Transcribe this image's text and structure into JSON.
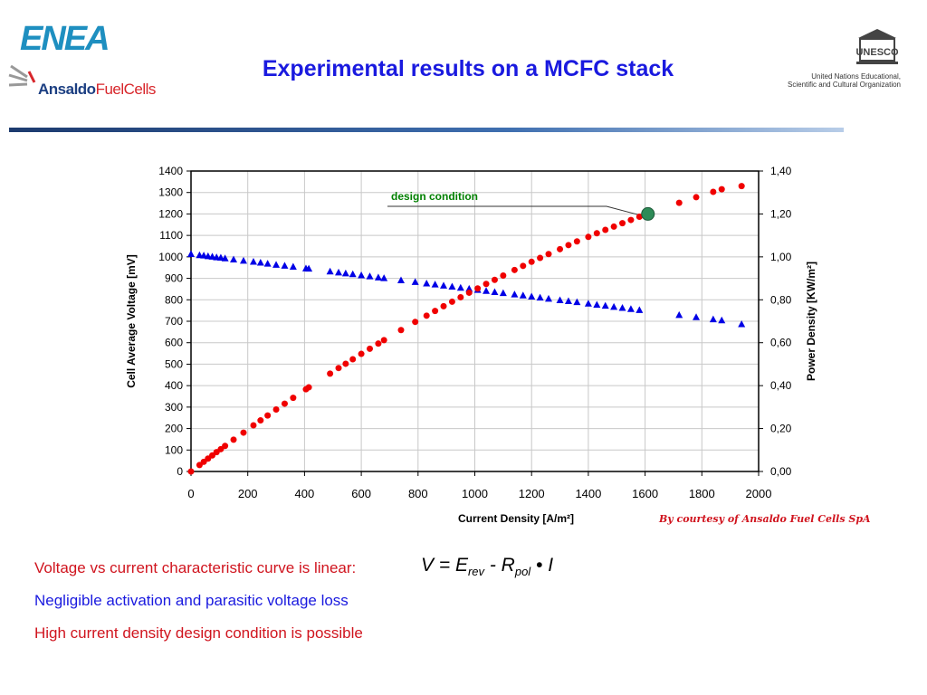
{
  "header": {
    "title": "Experimental results on a MCFC stack",
    "logo_left_top": "ENEA",
    "logo_left_bottom_a": "Ansaldo",
    "logo_left_bottom_b": "FuelCells",
    "logo_right_emblem": "UNESCO",
    "logo_right_line1": "United Nations Educational,",
    "logo_right_line2": "Scientific and Cultural Organization"
  },
  "chart_data": {
    "type": "scatter",
    "xlabel": "Current Density  [A/m²]",
    "ylabel": "Cell Average Voltage   [mV]",
    "y2label": "Power Density    [KW/m²]",
    "xlim": [
      0,
      2000
    ],
    "ylim": [
      0,
      1400
    ],
    "y2lim": [
      0,
      1.4
    ],
    "grid": true,
    "x_ticks": [
      "0",
      "200",
      "400",
      "600",
      "800",
      "1000",
      "1200",
      "1400",
      "1600",
      "1800",
      "2000"
    ],
    "y_ticks": [
      "0",
      "100",
      "200",
      "300",
      "400",
      "500",
      "600",
      "700",
      "800",
      "900",
      "1000",
      "1100",
      "1200",
      "1300",
      "1400"
    ],
    "y2_ticks": [
      "0,00",
      "0,20",
      "0,40",
      "0,60",
      "0,80",
      "1,00",
      "1,20",
      "1,40"
    ],
    "x": [
      0,
      30,
      45,
      60,
      75,
      90,
      105,
      120,
      150,
      185,
      220,
      245,
      270,
      300,
      330,
      360,
      405,
      415,
      490,
      520,
      545,
      570,
      600,
      630,
      660,
      680,
      740,
      790,
      830,
      860,
      890,
      920,
      950,
      980,
      1010,
      1040,
      1070,
      1100,
      1140,
      1170,
      1200,
      1230,
      1260,
      1300,
      1330,
      1360,
      1400,
      1430,
      1460,
      1490,
      1520,
      1550,
      1580,
      1720,
      1780,
      1840,
      1870,
      1940
    ],
    "series": [
      {
        "axis": "left",
        "marker": "triangle",
        "color": "#0000e6",
        "values": [
          1012,
          1007,
          1005,
          1002,
          1000,
          997,
          995,
          992,
          987,
          981,
          976,
          972,
          967,
          962,
          958,
          953,
          945,
          944,
          931,
          926,
          922,
          918,
          913,
          908,
          903,
          900,
          890,
          882,
          875,
          870,
          865,
          860,
          855,
          850,
          845,
          840,
          835,
          830,
          824,
          819,
          814,
          809,
          804,
          797,
          793,
          788,
          781,
          776,
          771,
          766,
          761,
          756,
          751,
          728,
          718,
          708,
          703,
          685
        ]
      },
      {
        "axis": "right",
        "marker": "circle",
        "color": "#f00000",
        "values": [
          0,
          0.03,
          0.045,
          0.06,
          0.075,
          0.09,
          0.104,
          0.119,
          0.148,
          0.181,
          0.215,
          0.238,
          0.261,
          0.289,
          0.316,
          0.343,
          0.383,
          0.392,
          0.456,
          0.482,
          0.502,
          0.523,
          0.548,
          0.572,
          0.596,
          0.612,
          0.659,
          0.697,
          0.726,
          0.748,
          0.77,
          0.791,
          0.812,
          0.833,
          0.853,
          0.874,
          0.893,
          0.913,
          0.939,
          0.958,
          0.977,
          0.995,
          1.013,
          1.036,
          1.055,
          1.072,
          1.093,
          1.11,
          1.126,
          1.141,
          1.157,
          1.172,
          1.187,
          1.252,
          1.278,
          1.303,
          1.315,
          1.33
        ]
      }
    ],
    "annotation": {
      "text": "design condition",
      "x": 1610,
      "y2": 1.2,
      "color": "#2e8b57",
      "text_color": "#008000"
    }
  },
  "footer": {
    "courtesy": "By courtesy of Ansaldo Fuel Cells SpA",
    "bullet1": "Voltage vs current characteristic curve is linear:",
    "formula_v": "V = E",
    "formula_rev": "rev",
    "formula_mid": " - R",
    "formula_pol": "pol",
    "formula_end": " • I",
    "bullet2": "Negligible activation and parasitic voltage loss",
    "bullet3": "High current density design condition is possible"
  }
}
